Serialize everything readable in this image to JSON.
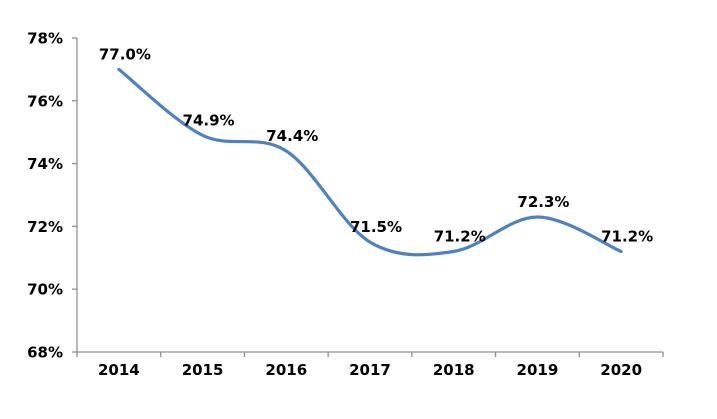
{
  "chart_data": {
    "type": "line",
    "smooth": true,
    "title": "",
    "xlabel": "",
    "ylabel": "",
    "legend_position": "none",
    "grid": false,
    "categories": [
      "2014",
      "2015",
      "2016",
      "2017",
      "2018",
      "2019",
      "2020"
    ],
    "values": [
      77.0,
      74.9,
      74.4,
      71.5,
      71.2,
      72.3,
      71.2
    ],
    "point_labels": [
      "77.0%",
      "74.9%",
      "74.4%",
      "71.5%",
      "71.2%",
      "72.3%",
      "71.2%"
    ],
    "ylim": [
      68,
      78
    ],
    "yticks": [
      {
        "value": 68,
        "label": "68%"
      },
      {
        "value": 70,
        "label": "70%"
      },
      {
        "value": 72,
        "label": "72%"
      },
      {
        "value": 74,
        "label": "74%"
      },
      {
        "value": 76,
        "label": "76%"
      },
      {
        "value": 78,
        "label": "78%"
      }
    ],
    "colors": {
      "line": "#4F81BD",
      "axis": "#909090",
      "text": "#000000",
      "background": "#FFFFFF"
    }
  }
}
